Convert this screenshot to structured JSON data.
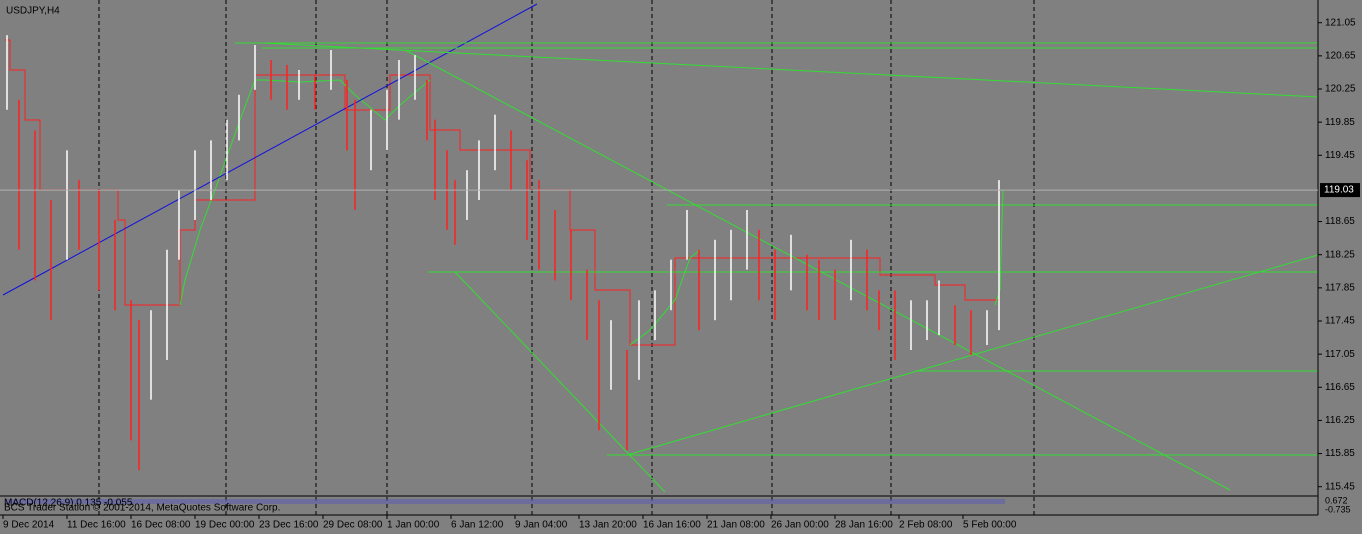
{
  "chart_data": {
    "type": "range_bar",
    "title": "USDJPY,H4",
    "x": [
      1,
      4,
      8,
      12,
      16,
      19,
      24,
      28,
      32,
      34,
      37,
      41,
      44,
      48,
      52,
      56,
      59,
      63,
      67,
      71,
      74,
      78,
      82,
      86,
      88,
      92,
      96,
      99,
      103,
      106,
      108,
      111,
      113,
      116,
      119,
      123,
      127,
      131,
      134,
      138,
      142,
      146,
      149,
      152,
      156,
      159,
      163,
      167,
      171,
      174,
      178,
      182,
      186,
      189,
      193,
      197,
      201,
      204,
      208,
      212,
      216,
      219,
      223,
      227,
      231,
      234,
      238,
      242,
      246,
      249
    ],
    "highs": [
      120.9,
      120.12,
      119.75,
      118.91,
      119.51,
      119.15,
      119.03,
      118.67,
      117.7,
      117.46,
      117.58,
      118.31,
      119.03,
      119.51,
      119.63,
      119.88,
      120.18,
      120.78,
      120.6,
      120.54,
      120.48,
      120.42,
      120.72,
      120.36,
      120.12,
      120.0,
      120.24,
      120.6,
      120.66,
      120.36,
      119.88,
      119.51,
      119.15,
      119.27,
      119.63,
      119.94,
      119.75,
      119.39,
      119.15,
      118.79,
      118.55,
      118.07,
      117.7,
      117.46,
      117.1,
      117.7,
      117.82,
      118.19,
      118.79,
      118.31,
      118.43,
      118.55,
      118.79,
      118.55,
      118.31,
      118.49,
      118.25,
      118.19,
      118.07,
      118.43,
      118.31,
      117.82,
      117.82,
      117.7,
      117.7,
      117.94,
      117.64,
      117.58,
      117.58,
      119.15
    ],
    "lows": [
      120.0,
      118.31,
      117.94,
      117.46,
      118.19,
      118.31,
      117.82,
      117.58,
      116.01,
      115.65,
      116.5,
      116.98,
      118.19,
      118.67,
      118.91,
      119.15,
      119.63,
      120.24,
      120.12,
      120.0,
      120.12,
      120.0,
      120.24,
      119.51,
      118.79,
      119.27,
      119.51,
      119.88,
      120.12,
      119.63,
      118.91,
      118.55,
      118.37,
      118.67,
      118.91,
      119.27,
      119.03,
      118.43,
      118.07,
      117.94,
      117.7,
      117.22,
      116.13,
      116.62,
      115.89,
      116.74,
      117.22,
      117.58,
      118.19,
      117.34,
      117.46,
      117.7,
      118.07,
      117.7,
      117.46,
      117.82,
      117.58,
      117.46,
      117.46,
      117.7,
      117.58,
      117.34,
      116.98,
      117.1,
      117.22,
      117.28,
      117.16,
      117.04,
      117.16,
      117.34
    ],
    "up_color": "#ffffff",
    "down_color": "#ff2020",
    "xlim": [
      -0.75,
      328.75
    ],
    "xticks": [
      {
        "value": 0,
        "label": "9 Dec 2014"
      },
      {
        "value": 16,
        "label": "11 Dec 16:00"
      },
      {
        "value": 32,
        "label": "16 Dec 08:00"
      },
      {
        "value": 48,
        "label": "19 Dec 00:00"
      },
      {
        "value": 64,
        "label": "23 Dec 16:00"
      },
      {
        "value": 80,
        "label": "29 Dec 08:00"
      },
      {
        "value": 96,
        "label": "1 Jan 00:00"
      },
      {
        "value": 112,
        "label": "6 Jan 12:00"
      },
      {
        "value": 128,
        "label": "9 Jan 04:00"
      },
      {
        "value": 144,
        "label": "13 Jan 20:00"
      },
      {
        "value": 160,
        "label": "16 Jan 16:00"
      },
      {
        "value": 176,
        "label": "21 Jan 08:00"
      },
      {
        "value": 192,
        "label": "26 Jan 00:00"
      },
      {
        "value": 208,
        "label": "28 Jan 16:00"
      },
      {
        "value": 224,
        "label": "2 Feb 08:00"
      },
      {
        "value": 240,
        "label": "5 Feb 00:00"
      }
    ],
    "ylim": [
      115.35,
      121.3
    ],
    "yticks": [
      121.05,
      120.65,
      120.25,
      119.85,
      119.45,
      118.65,
      118.25,
      117.85,
      117.45,
      117.05,
      116.65,
      116.25,
      115.85,
      115.45
    ],
    "current_price": 119.03,
    "macd_label": "MACD(12,26,9) 0.135 -0.055",
    "copyright": "BCS Trader Station © 2001-2014, MetaQuotes Software Corp.",
    "macd_axis": [
      "0.672",
      "-0.735"
    ]
  }
}
